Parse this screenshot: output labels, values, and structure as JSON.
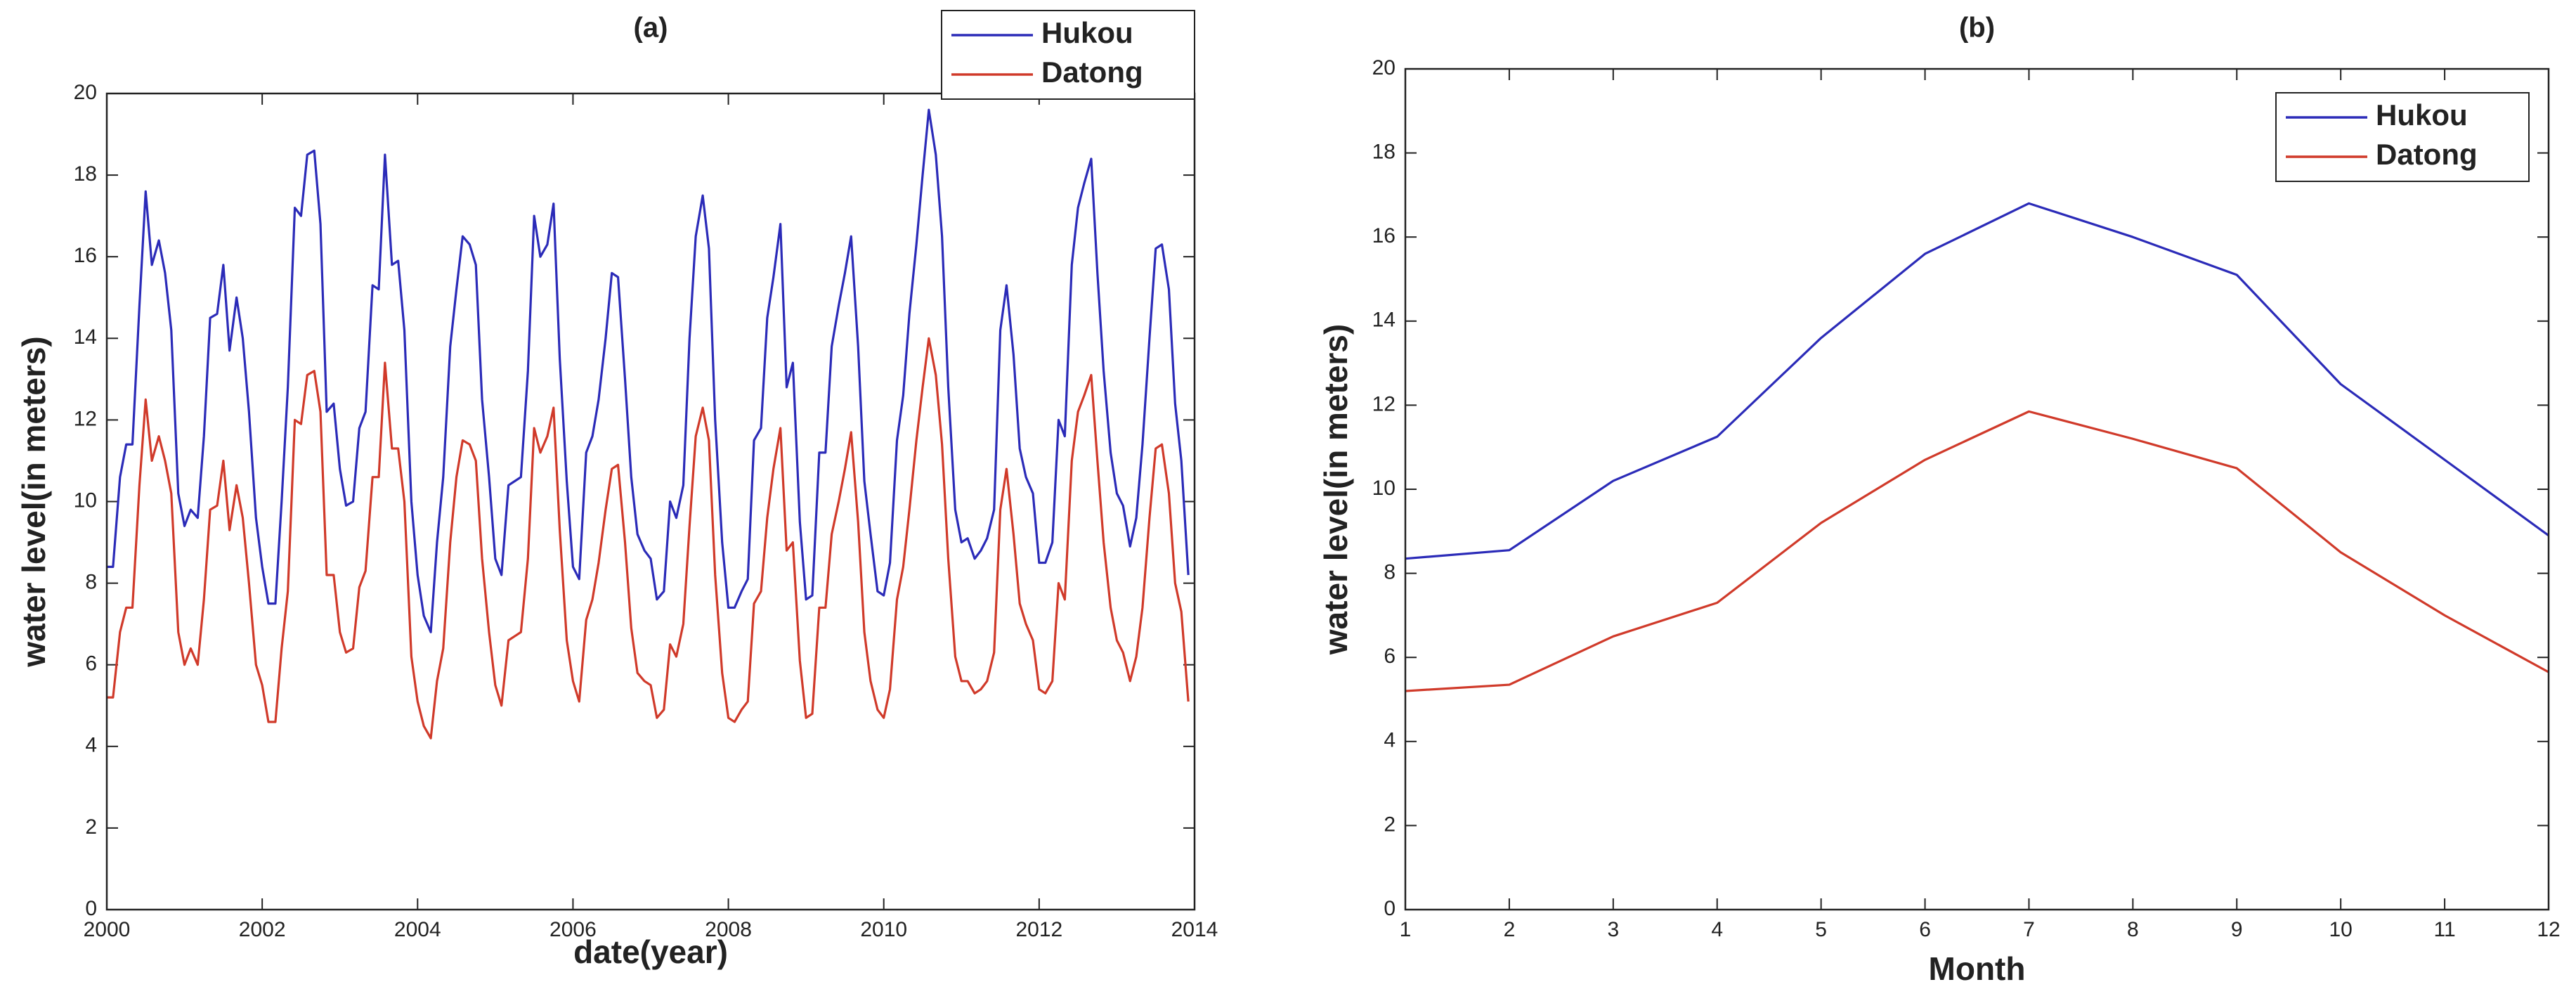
{
  "chart_data": [
    {
      "type": "line",
      "title": "(a)",
      "xlabel": "date(year)",
      "ylabel": "water level(in meters)",
      "xlim": [
        2000,
        2014
      ],
      "xticks": [
        2000,
        2002,
        2004,
        2006,
        2008,
        2010,
        2012,
        2014
      ],
      "ylim": [
        0,
        20
      ],
      "yticks": [
        0,
        2,
        4,
        6,
        8,
        10,
        12,
        14,
        16,
        18,
        20
      ],
      "legend": "upper right",
      "x": [
        2000,
        2000.08,
        2000.17,
        2000.25,
        2000.33,
        2000.42,
        2000.5,
        2000.58,
        2000.67,
        2000.75,
        2000.83,
        2000.92,
        2001,
        2001.08,
        2001.17,
        2001.25,
        2001.33,
        2001.42,
        2001.5,
        2001.58,
        2001.67,
        2001.75,
        2001.83,
        2001.92,
        2002,
        2002.08,
        2002.17,
        2002.25,
        2002.33,
        2002.42,
        2002.5,
        2002.58,
        2002.67,
        2002.75,
        2002.83,
        2002.92,
        2003,
        2003.08,
        2003.17,
        2003.25,
        2003.33,
        2003.42,
        2003.5,
        2003.58,
        2003.67,
        2003.75,
        2003.83,
        2003.92,
        2004,
        2004.08,
        2004.17,
        2004.25,
        2004.33,
        2004.42,
        2004.5,
        2004.58,
        2004.67,
        2004.75,
        2004.83,
        2004.92,
        2005,
        2005.08,
        2005.17,
        2005.25,
        2005.33,
        2005.42,
        2005.5,
        2005.58,
        2005.67,
        2005.75,
        2005.83,
        2005.92,
        2006,
        2006.08,
        2006.17,
        2006.25,
        2006.33,
        2006.42,
        2006.5,
        2006.58,
        2006.67,
        2006.75,
        2006.83,
        2006.92,
        2007,
        2007.08,
        2007.17,
        2007.25,
        2007.33,
        2007.42,
        2007.5,
        2007.58,
        2007.67,
        2007.75,
        2007.83,
        2007.92,
        2008,
        2008.08,
        2008.17,
        2008.25,
        2008.33,
        2008.42,
        2008.5,
        2008.58,
        2008.67,
        2008.75,
        2008.83,
        2008.92,
        2009,
        2009.08,
        2009.17,
        2009.25,
        2009.33,
        2009.42,
        2009.5,
        2009.58,
        2009.67,
        2009.75,
        2009.83,
        2009.92,
        2010,
        2010.08,
        2010.17,
        2010.25,
        2010.33,
        2010.42,
        2010.5,
        2010.58,
        2010.67,
        2010.75,
        2010.83,
        2010.92,
        2011,
        2011.08,
        2011.17,
        2011.25,
        2011.33,
        2011.42,
        2011.5,
        2011.58,
        2011.67,
        2011.75,
        2011.83,
        2011.92,
        2012,
        2012.08,
        2012.17,
        2012.25,
        2012.33,
        2012.42,
        2012.5,
        2012.58,
        2012.67,
        2012.75,
        2012.83,
        2012.92,
        2013,
        2013.08,
        2013.17,
        2013.25,
        2013.33,
        2013.42,
        2013.5,
        2013.58,
        2013.67,
        2013.75,
        2013.83,
        2013.92
      ],
      "series": [
        {
          "name": "Hukou",
          "color": "#2b2bb8",
          "values": [
            8.4,
            8.4,
            10.6,
            11.4,
            11.4,
            14.8,
            17.6,
            15.8,
            16.4,
            15.6,
            14.2,
            10.2,
            9.4,
            9.8,
            9.6,
            11.6,
            14.5,
            14.6,
            15.8,
            13.7,
            15.0,
            14.0,
            12.2,
            9.6,
            8.4,
            7.5,
            7.5,
            10.0,
            12.8,
            17.2,
            17.0,
            18.5,
            18.6,
            16.8,
            12.2,
            12.4,
            10.8,
            9.9,
            10.0,
            11.8,
            12.2,
            15.3,
            15.2,
            18.5,
            15.8,
            15.9,
            14.2,
            10.0,
            8.2,
            7.2,
            6.8,
            9.0,
            10.6,
            13.8,
            15.2,
            16.5,
            16.3,
            15.8,
            12.5,
            10.6,
            8.6,
            8.2,
            10.4,
            10.5,
            10.6,
            13.2,
            17.0,
            16.0,
            16.3,
            17.3,
            13.5,
            10.5,
            8.4,
            8.1,
            11.2,
            11.6,
            12.5,
            14.0,
            15.6,
            15.5,
            13.0,
            10.6,
            9.2,
            8.8,
            8.6,
            7.6,
            7.8,
            10.0,
            9.6,
            10.4,
            14.0,
            16.5,
            17.5,
            16.2,
            12.0,
            9.0,
            7.4,
            7.4,
            7.8,
            8.1,
            11.5,
            11.8,
            14.5,
            15.5,
            16.8,
            12.8,
            13.4,
            9.5,
            7.6,
            7.7,
            11.2,
            11.2,
            13.8,
            14.8,
            15.6,
            16.5,
            13.8,
            10.5,
            9.2,
            7.8,
            7.7,
            8.5,
            11.5,
            12.6,
            14.6,
            16.3,
            18.0,
            19.6,
            18.5,
            16.5,
            12.8,
            9.8,
            9.0,
            9.1,
            8.6,
            8.8,
            9.1,
            9.8,
            14.2,
            15.3,
            13.6,
            11.3,
            10.6,
            10.2,
            8.5,
            8.5,
            9.0,
            12.0,
            11.6,
            15.8,
            17.2,
            17.8,
            18.4,
            15.6,
            13.2,
            11.2,
            10.2,
            9.9,
            8.9,
            9.6,
            11.4,
            14.0,
            16.2,
            16.3,
            15.2,
            12.4,
            11.0,
            8.2
          ]
        },
        {
          "name": "Datong",
          "color": "#d03a2a",
          "values": [
            5.2,
            5.2,
            6.8,
            7.4,
            7.4,
            10.4,
            12.5,
            11.0,
            11.6,
            11.0,
            10.2,
            6.8,
            6.0,
            6.4,
            6.0,
            7.6,
            9.8,
            9.9,
            11.0,
            9.3,
            10.4,
            9.6,
            8.0,
            6.0,
            5.5,
            4.6,
            4.6,
            6.4,
            7.8,
            12.0,
            11.9,
            13.1,
            13.2,
            12.2,
            8.2,
            8.2,
            6.8,
            6.3,
            6.4,
            7.9,
            8.3,
            10.6,
            10.6,
            13.4,
            11.3,
            11.3,
            10.0,
            6.2,
            5.1,
            4.5,
            4.2,
            5.6,
            6.4,
            9.0,
            10.6,
            11.5,
            11.4,
            11.0,
            8.6,
            6.8,
            5.5,
            5.0,
            6.6,
            6.7,
            6.8,
            8.6,
            11.8,
            11.2,
            11.6,
            12.3,
            9.3,
            6.6,
            5.6,
            5.1,
            7.1,
            7.6,
            8.5,
            9.8,
            10.8,
            10.9,
            9.0,
            6.9,
            5.8,
            5.6,
            5.5,
            4.7,
            4.9,
            6.5,
            6.2,
            7.0,
            9.4,
            11.6,
            12.3,
            11.5,
            8.2,
            5.8,
            4.7,
            4.6,
            4.9,
            5.1,
            7.5,
            7.8,
            9.6,
            10.8,
            11.8,
            8.8,
            9.0,
            6.1,
            4.7,
            4.8,
            7.4,
            7.4,
            9.2,
            10.0,
            10.8,
            11.7,
            9.5,
            6.8,
            5.6,
            4.9,
            4.7,
            5.4,
            7.6,
            8.4,
            9.8,
            11.5,
            12.8,
            14.0,
            13.1,
            11.4,
            8.6,
            6.2,
            5.6,
            5.6,
            5.3,
            5.4,
            5.6,
            6.3,
            9.8,
            10.8,
            9.2,
            7.5,
            7.0,
            6.6,
            5.4,
            5.3,
            5.6,
            8.0,
            7.6,
            11.0,
            12.2,
            12.6,
            13.1,
            11.0,
            9.0,
            7.4,
            6.6,
            6.3,
            5.6,
            6.2,
            7.4,
            9.6,
            11.3,
            11.4,
            10.2,
            8.0,
            7.3,
            5.1
          ]
        }
      ]
    },
    {
      "type": "line",
      "title": "(b)",
      "xlabel": "Month",
      "ylabel": "water level(in meters)",
      "xlim": [
        1,
        12
      ],
      "xticks": [
        1,
        2,
        3,
        4,
        5,
        6,
        7,
        8,
        9,
        10,
        11,
        12
      ],
      "ylim": [
        0,
        20
      ],
      "yticks": [
        0,
        2,
        4,
        6,
        8,
        10,
        12,
        14,
        16,
        18,
        20
      ],
      "legend": "upper right",
      "x": [
        1,
        2,
        3,
        4,
        5,
        6,
        7,
        8,
        9,
        10,
        11,
        12
      ],
      "series": [
        {
          "name": "Hukou",
          "color": "#2b2bb8",
          "values": [
            8.35,
            8.55,
            10.2,
            11.25,
            13.6,
            15.6,
            16.8,
            16.0,
            15.1,
            12.5,
            10.7,
            8.9
          ]
        },
        {
          "name": "Datong",
          "color": "#d03a2a",
          "values": [
            5.2,
            5.35,
            6.5,
            7.3,
            9.2,
            10.7,
            11.85,
            11.2,
            10.5,
            8.5,
            7.0,
            5.65
          ]
        }
      ]
    }
  ]
}
